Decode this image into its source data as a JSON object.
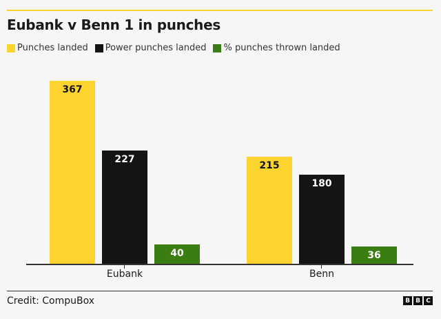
{
  "header": {
    "title": "Eubank v Benn 1 in punches"
  },
  "legend": [
    {
      "label": "Punches landed",
      "color": "#fdd32f"
    },
    {
      "label": "Power punches landed",
      "color": "#141414"
    },
    {
      "label": "% punches thrown landed",
      "color": "#3a7d12"
    }
  ],
  "chart_data": {
    "type": "bar",
    "title": "Eubank v Benn 1 in punches",
    "xlabel": "",
    "ylabel": "",
    "categories": [
      "Eubank",
      "Benn"
    ],
    "series": [
      {
        "name": "Punches landed",
        "values": [
          367,
          215
        ],
        "color": "#fdd32f"
      },
      {
        "name": "Power punches landed",
        "values": [
          227,
          180
        ],
        "color": "#141414"
      },
      {
        "name": "% punches thrown landed",
        "values": [
          40,
          36
        ],
        "color": "#3a7d12"
      }
    ],
    "grid": false,
    "legend_position": "top-left",
    "data_labels": true
  },
  "footer": {
    "credit": "Credit: CompuBox",
    "logo": [
      "B",
      "B",
      "C"
    ]
  }
}
